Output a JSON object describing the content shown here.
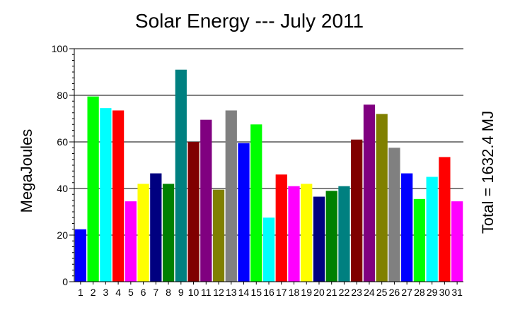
{
  "chart_data": {
    "type": "bar",
    "title": "Solar Energy --- July 2011",
    "xlabel": "",
    "ylabel": "MegaJoules",
    "right_label": "Total = 1632.4 MJ",
    "ylim": [
      0,
      100
    ],
    "yticks": [
      0,
      20,
      40,
      60,
      80,
      100
    ],
    "grid": "horizontal",
    "categories": [
      "1",
      "2",
      "3",
      "4",
      "5",
      "6",
      "7",
      "8",
      "9",
      "10",
      "11",
      "12",
      "13",
      "14",
      "15",
      "16",
      "17",
      "18",
      "19",
      "20",
      "21",
      "22",
      "23",
      "24",
      "25",
      "26",
      "27",
      "28",
      "29",
      "30",
      "31"
    ],
    "values": [
      22.5,
      79.5,
      74.5,
      73.5,
      34.5,
      42,
      46.5,
      42,
      91,
      60,
      69.5,
      39.5,
      73.5,
      59.5,
      67.5,
      27.5,
      46,
      41,
      42,
      36.5,
      39,
      41,
      61,
      76,
      72,
      57.5,
      46.5,
      35.5,
      45,
      53.5,
      34.5
    ],
    "colors": [
      "#0000ff",
      "#00ff00",
      "#00ffff",
      "#ff0000",
      "#ff00ff",
      "#ffff00",
      "#000080",
      "#008000",
      "#008080",
      "#800000",
      "#800080",
      "#808000",
      "#808080",
      "#0000ff",
      "#00ff00",
      "#00ffff",
      "#ff0000",
      "#ff00ff",
      "#ffff00",
      "#000080",
      "#008000",
      "#008080",
      "#800000",
      "#800080",
      "#808000",
      "#808080",
      "#0000ff",
      "#00ff00",
      "#00ffff",
      "#ff0000",
      "#ff00ff"
    ]
  }
}
